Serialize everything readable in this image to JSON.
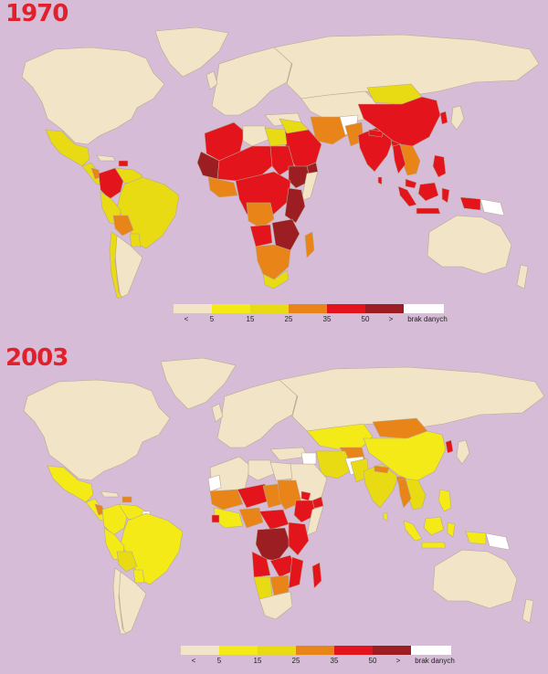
{
  "maps": [
    {
      "year": "1970",
      "legend": {
        "colors": [
          "#f2e4c6",
          "#f3ea18",
          "#e8db14",
          "#e88418",
          "#e3141c",
          "#9c1e22",
          "#ffffff"
        ],
        "labels": [
          "<",
          "5",
          "15",
          "25",
          "35",
          "50",
          ">",
          "brak danych"
        ]
      }
    },
    {
      "year": "2003",
      "legend": {
        "colors": [
          "#f2e4c6",
          "#f3ea18",
          "#e8db14",
          "#e88418",
          "#e3141c",
          "#9c1e22",
          "#ffffff"
        ],
        "labels": [
          "<",
          "5",
          "15",
          "25",
          "35",
          "50",
          ">",
          "brak danych"
        ]
      }
    }
  ],
  "colors": {
    "background": "#d6bcd6",
    "land_low": "#f2e4c6",
    "border": "#b8a890",
    "water": "#c9d7e6"
  }
}
